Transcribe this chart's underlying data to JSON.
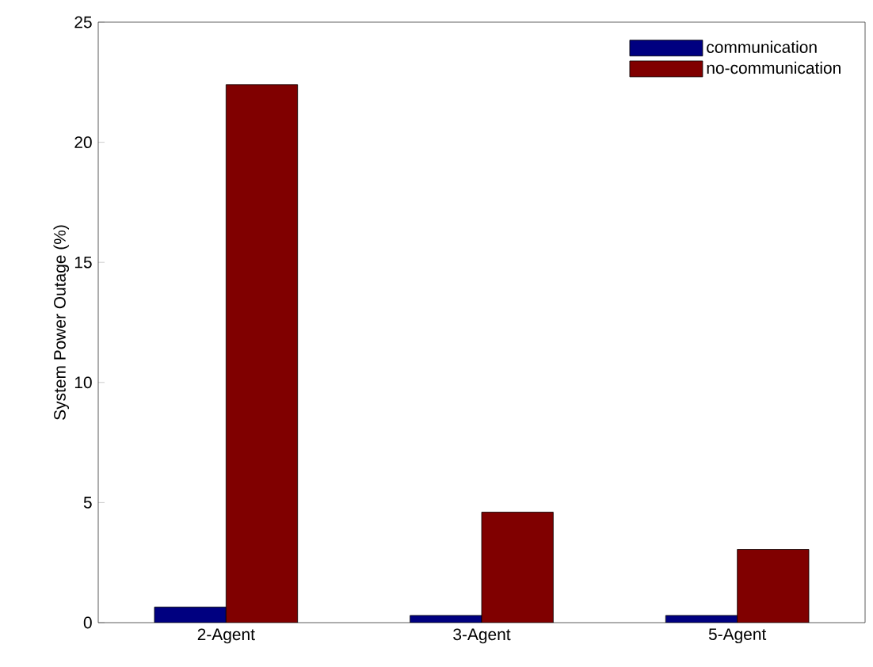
{
  "chart_data": {
    "type": "bar",
    "ylabel": "System Power Outage (%)",
    "categories": [
      "2-Agent",
      "3-Agent",
      "5-Agent"
    ],
    "series": [
      {
        "name": "communication",
        "color": "#000080",
        "values": [
          0.65,
          0.3,
          0.3
        ]
      },
      {
        "name": "no-communication",
        "color": "#800000",
        "values": [
          22.4,
          4.6,
          3.05
        ]
      }
    ],
    "ylim": [
      0,
      25
    ],
    "yticks": [
      0,
      5,
      10,
      15,
      20,
      25
    ],
    "grid": false,
    "legend": "top right"
  }
}
